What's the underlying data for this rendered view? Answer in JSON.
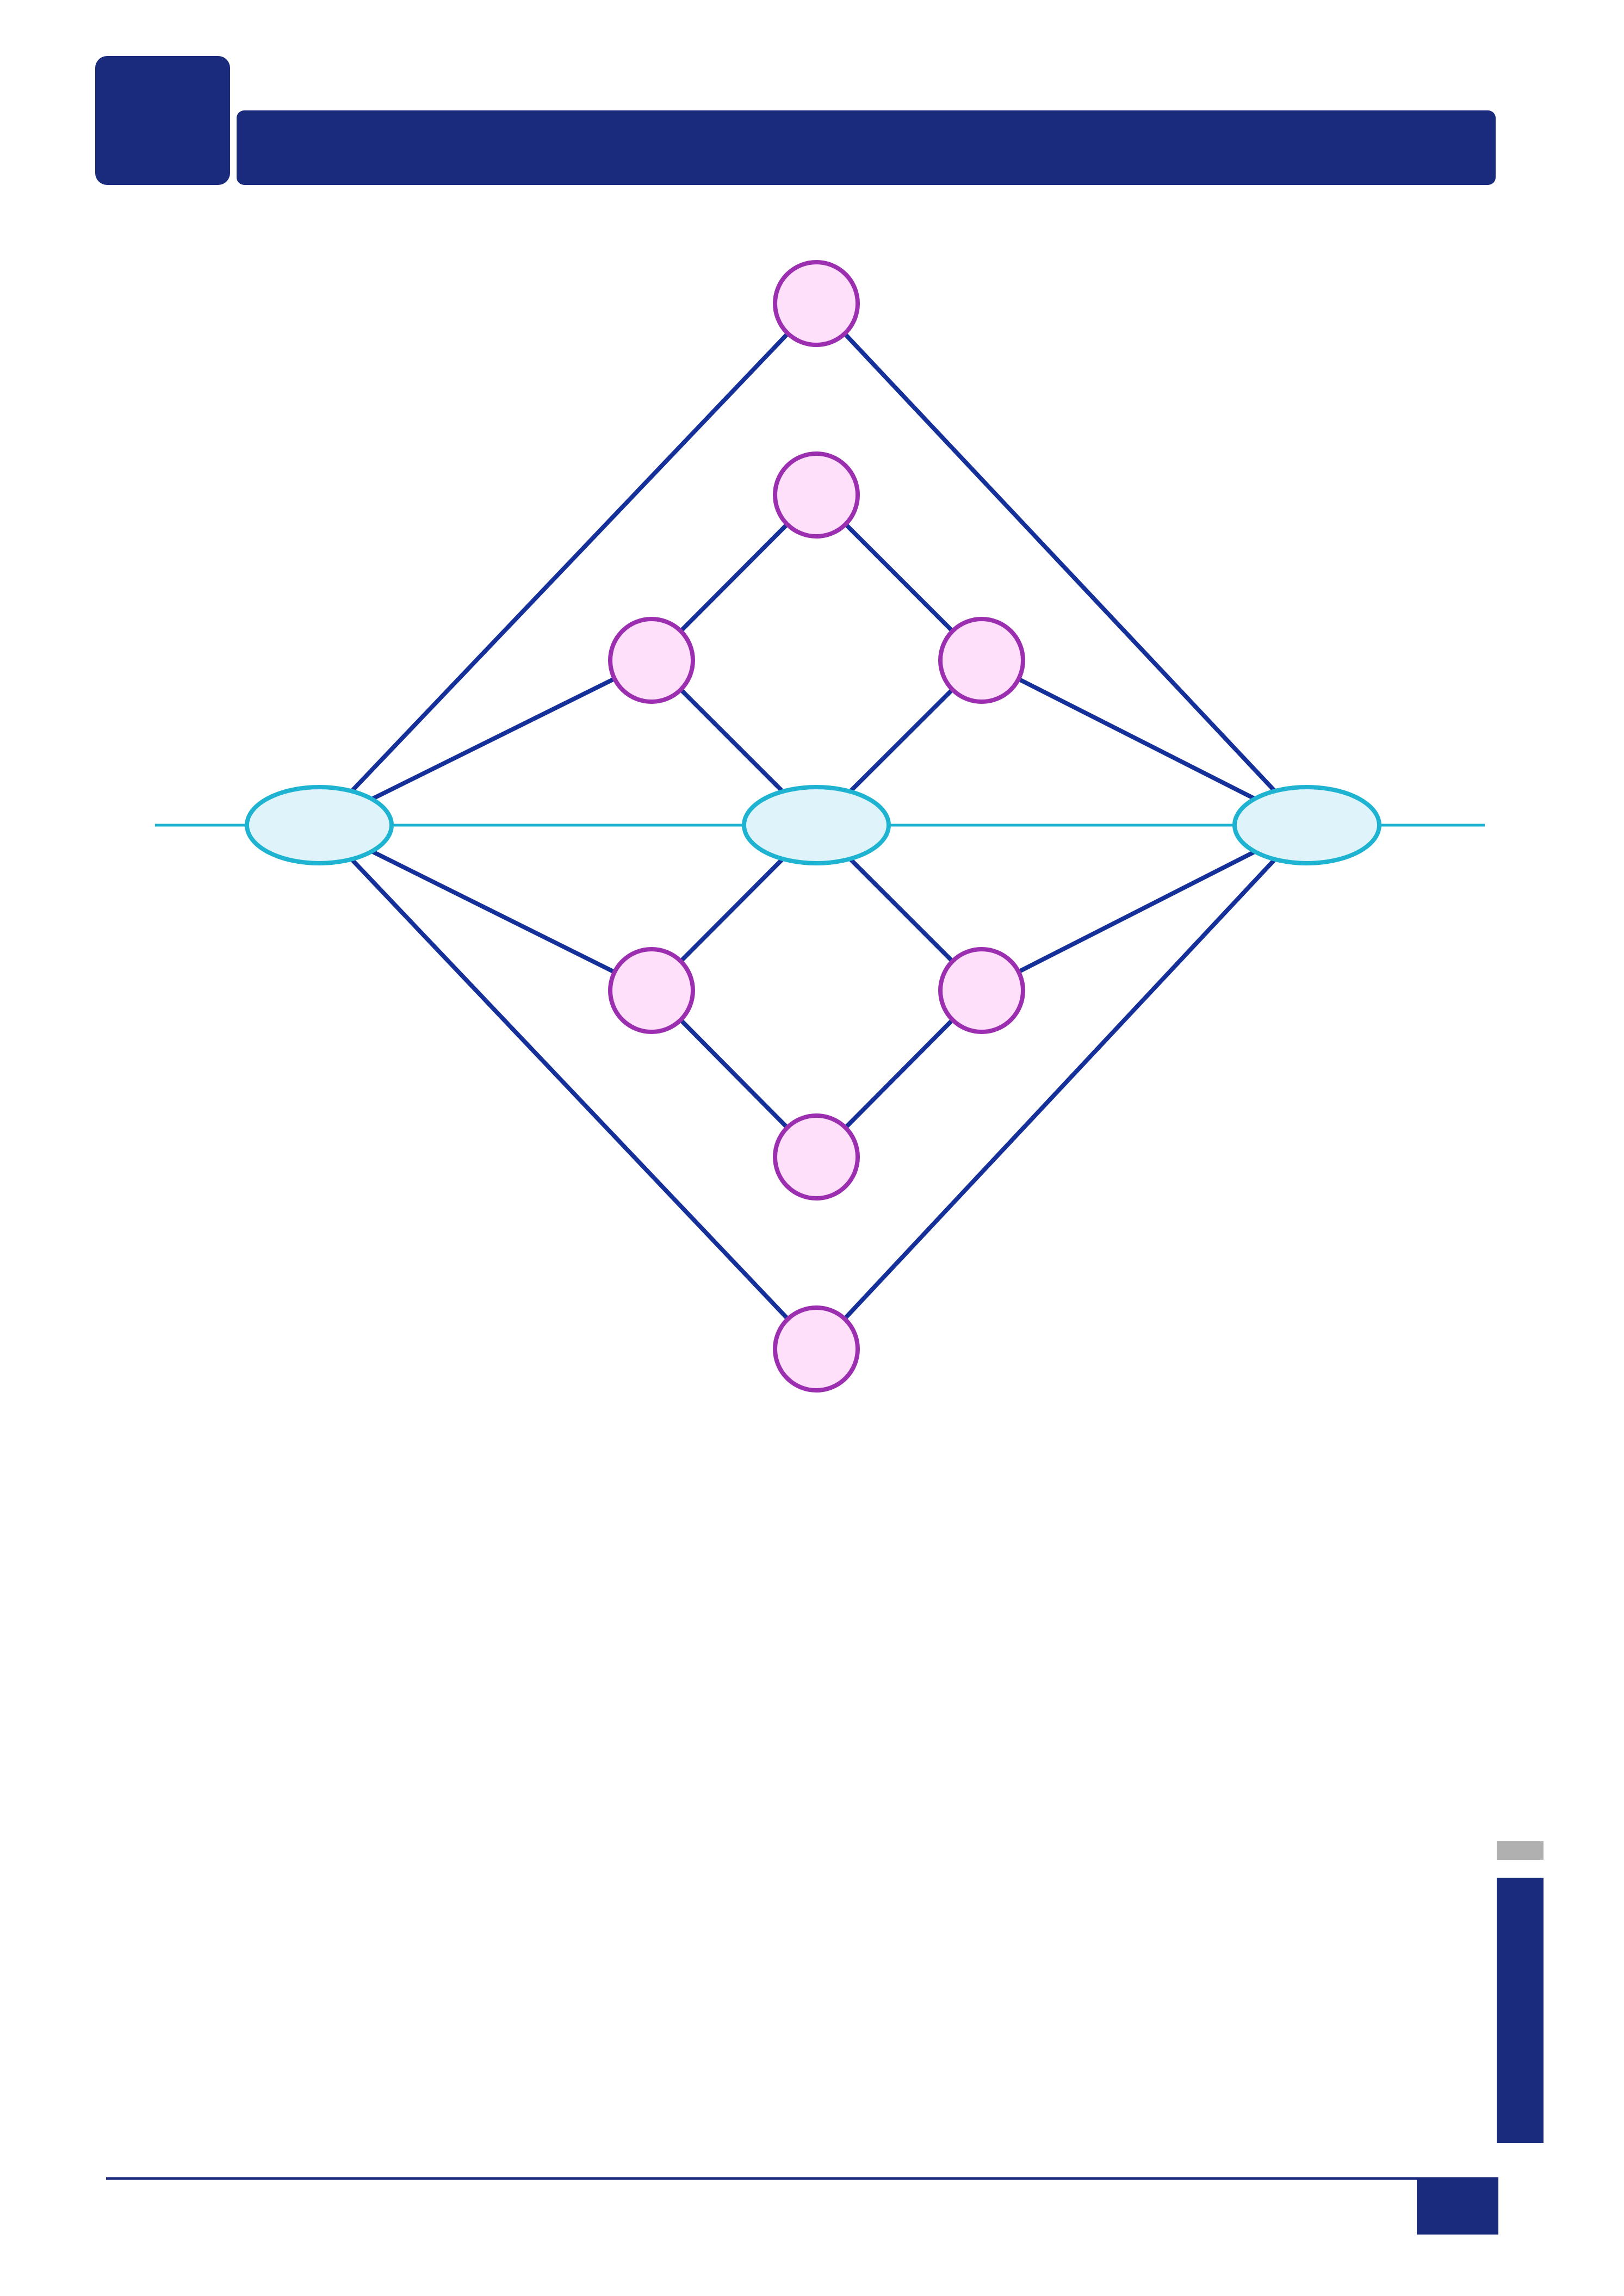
{
  "colors": {
    "navy": "#1a2a7c",
    "edge": "#16309a",
    "axis": "#1fb3d2",
    "hub_fill": "#dff4fa",
    "hub_stroke": "#1fb3d2",
    "node_fill": "#ffe0fb",
    "node_stroke": "#9b2fb0",
    "marker_grey": "#b0b0b0",
    "background": "#ffffff"
  },
  "diagram": {
    "hubs": [
      {
        "id": "hub-left"
      },
      {
        "id": "hub-center"
      },
      {
        "id": "hub-right"
      }
    ],
    "nodes": [
      {
        "id": "node-top-outer"
      },
      {
        "id": "node-top-inner"
      },
      {
        "id": "node-upper-left"
      },
      {
        "id": "node-upper-right"
      },
      {
        "id": "node-lower-left"
      },
      {
        "id": "node-lower-right"
      },
      {
        "id": "node-bottom-inner"
      },
      {
        "id": "node-bottom-outer"
      }
    ],
    "edges": [
      [
        "hub-left",
        "node-top-outer"
      ],
      [
        "node-top-outer",
        "hub-right"
      ],
      [
        "hub-left",
        "node-bottom-outer"
      ],
      [
        "node-bottom-outer",
        "hub-right"
      ],
      [
        "hub-left",
        "node-upper-left"
      ],
      [
        "hub-left",
        "node-lower-left"
      ],
      [
        "hub-right",
        "node-upper-right"
      ],
      [
        "hub-right",
        "node-lower-right"
      ],
      [
        "node-upper-left",
        "node-top-inner"
      ],
      [
        "node-top-inner",
        "node-upper-right"
      ],
      [
        "node-upper-left",
        "hub-center"
      ],
      [
        "node-upper-right",
        "hub-center"
      ],
      [
        "hub-center",
        "node-lower-left"
      ],
      [
        "hub-center",
        "node-lower-right"
      ],
      [
        "node-lower-left",
        "node-bottom-inner"
      ],
      [
        "node-lower-right",
        "node-bottom-inner"
      ]
    ]
  }
}
